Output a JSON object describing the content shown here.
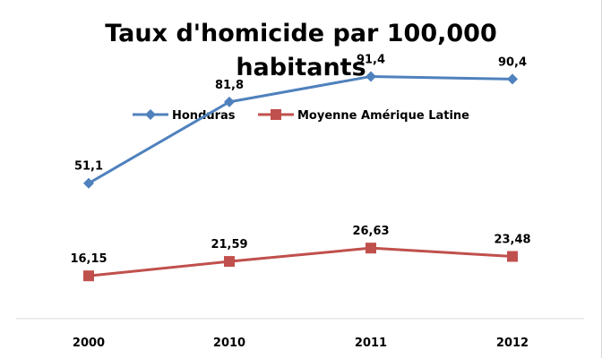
{
  "chart_data": {
    "type": "line",
    "title_lines": [
      "Taux d'homicide par 100,000",
      "habitants"
    ],
    "categories": [
      "2000",
      "2010",
      "2011",
      "2012"
    ],
    "series": [
      {
        "name": "Honduras",
        "values": [
          51.1,
          81.8,
          91.4,
          90.4
        ],
        "labels": [
          "51,1",
          "81,8",
          "91,4",
          "90,4"
        ],
        "color": "#4f81bd",
        "marker": "diamond"
      },
      {
        "name": "Moyenne Amérique Latine",
        "values": [
          16.15,
          21.59,
          26.63,
          23.48
        ],
        "labels": [
          "16,15",
          "21,59",
          "26,63",
          "23,48"
        ],
        "color": "#c0504d",
        "marker": "square"
      }
    ],
    "ylim": [
      0,
      100
    ],
    "grid": false,
    "legend_position": "top-center",
    "xlabel": "",
    "ylabel": ""
  }
}
